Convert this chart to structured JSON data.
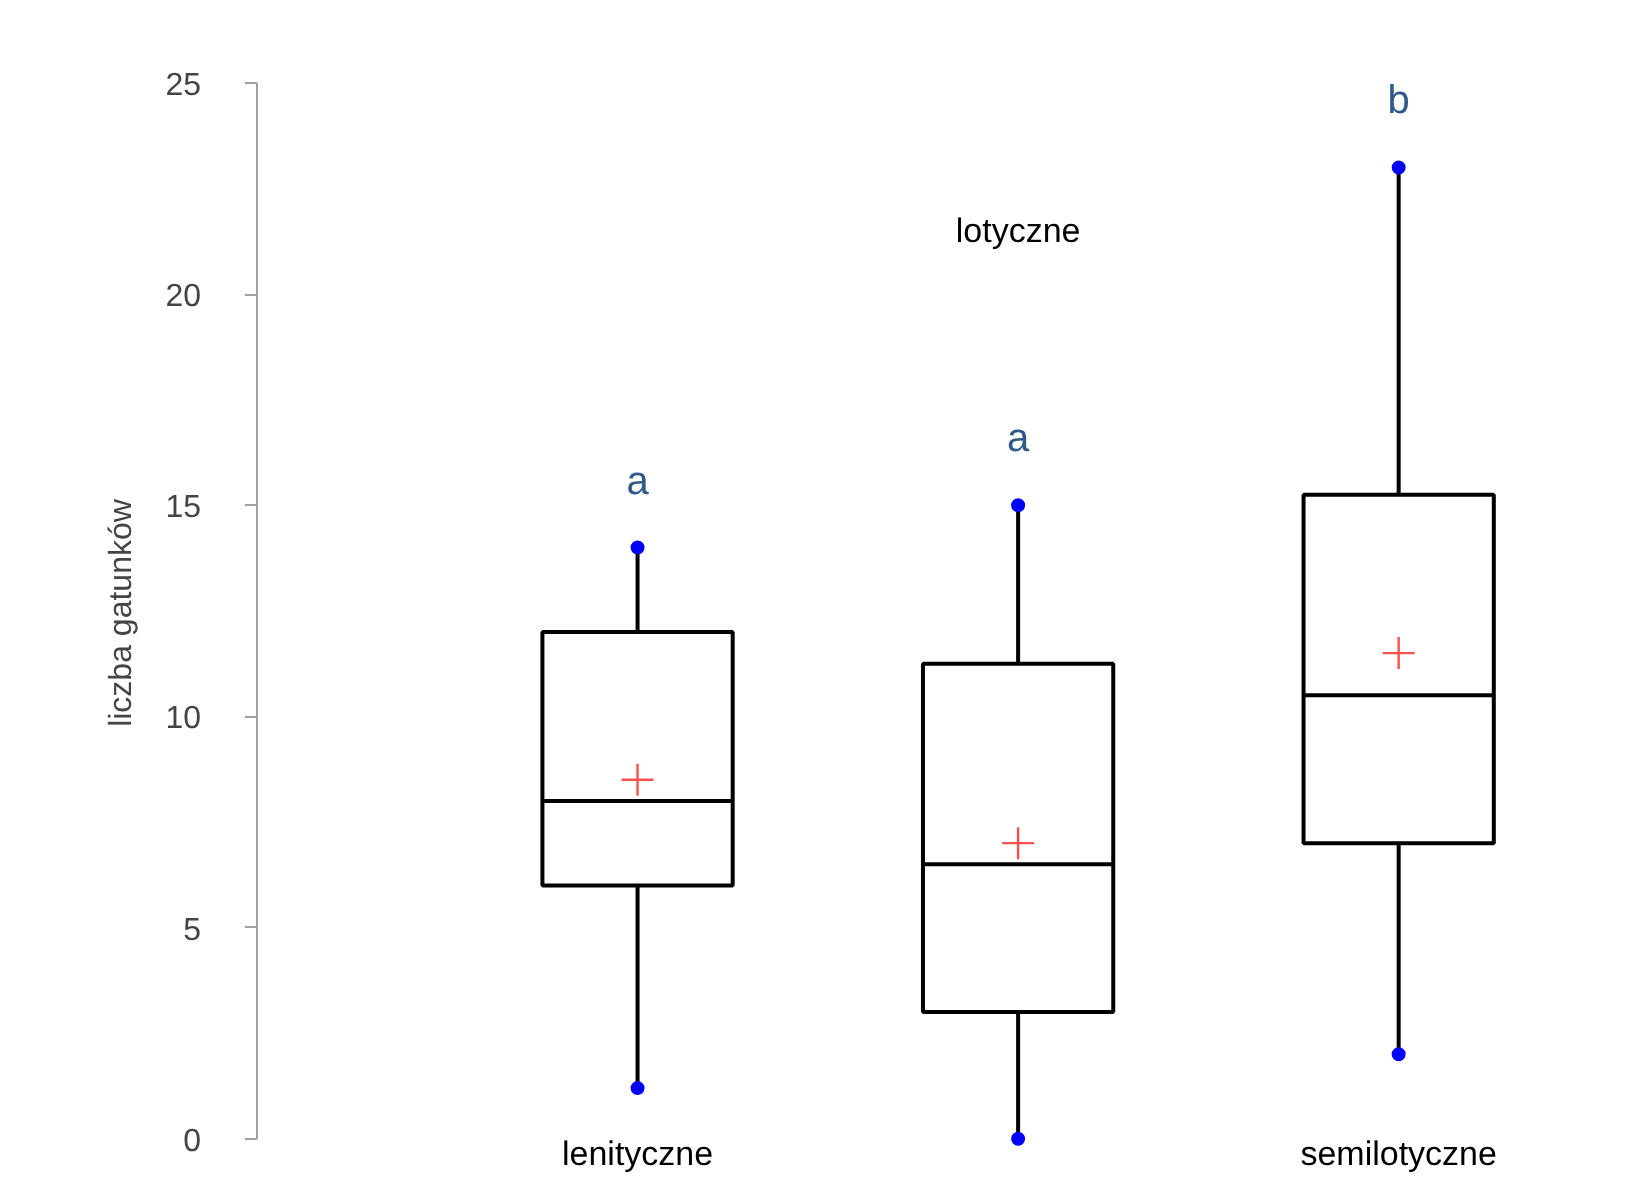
{
  "chart_data": {
    "type": "box",
    "ylabel": "liczba gatunków",
    "categories": [
      "lenityczne",
      "lotyczne",
      "semilotyczne"
    ],
    "series": [
      {
        "color": "#000000",
        "boxes": [
          {
            "low": 1.2,
            "q1": 6,
            "median": 8,
            "q3": 12,
            "high": 14,
            "mean": 8.5
          },
          {
            "low": 0,
            "q1": 3,
            "median": 6.5,
            "q3": 11.25,
            "high": 15,
            "mean": 7
          },
          {
            "low": 2,
            "q1": 7,
            "median": 10.5,
            "q3": 15.25,
            "high": 23,
            "mean": 11.5
          }
        ]
      },
      {
        "type": "scatter",
        "color": "#0000ff",
        "x": [
          "lenityczne",
          "lenityczne",
          "lotyczne",
          "lotyczne",
          "semilotyczne",
          "semilotyczne"
        ],
        "values": [
          1.2,
          14,
          0,
          15,
          2,
          23
        ]
      }
    ],
    "annotations": [
      "a",
      "a",
      "b"
    ],
    "ylim": [
      0,
      25
    ],
    "yticks": [
      0,
      5,
      10,
      15,
      20,
      25
    ],
    "grid": false
  }
}
